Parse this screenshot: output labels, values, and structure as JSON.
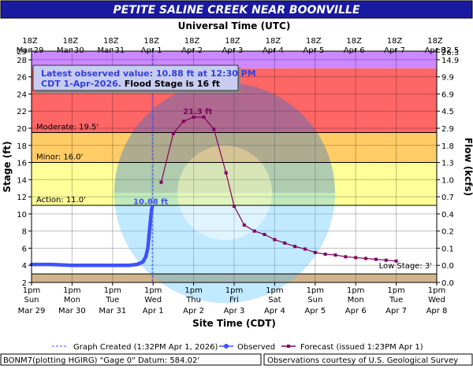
{
  "title": "PETITE SALINE CREEK NEAR BOONVILLE",
  "top_axis_title": "Universal Time (UTC)",
  "bottom_axis_title": "Site Time (CDT)",
  "left_axis_title": "Stage (ft)",
  "right_axis_title": "Flow (kcfs)",
  "info_box": {
    "line1": "Latest observed value: 10.88 ft at 12:30 PM",
    "line2a": "CDT 1-Apr-2026.",
    "line2b": " Flood Stage is 16 ft"
  },
  "footer": {
    "legend_created": "Graph Created (1:32PM Apr 1, 2026)",
    "legend_observed": "Observed",
    "legend_forecast": "Forecast (issued 1:23PM Apr 1)",
    "id_text": "BONM7(plotting HGIRG) \"Gage 0\" Datum: 584.02'",
    "credit": "Observations courtesy of U.S. Geological Survey"
  },
  "chart_data": {
    "type": "line",
    "x_unit": "days since 1pm Mar 29 (CDT)",
    "xlim": [
      0,
      10
    ],
    "ylim": [
      2,
      29
    ],
    "left_ticks": [
      2,
      4,
      6,
      8,
      10,
      12,
      14,
      16,
      18,
      20,
      22,
      24,
      26,
      28,
      29
    ],
    "right_ticks": [
      {
        "stage": 2,
        "label": "0.0"
      },
      {
        "stage": 4,
        "label": "0.0"
      },
      {
        "stage": 6,
        "label": "0.1"
      },
      {
        "stage": 8,
        "label": "0.2"
      },
      {
        "stage": 10,
        "label": "0.4"
      },
      {
        "stage": 12,
        "label": "0.7"
      },
      {
        "stage": 14,
        "label": "1.0"
      },
      {
        "stage": 16,
        "label": "1.3"
      },
      {
        "stage": 18,
        "label": "1.8"
      },
      {
        "stage": 20,
        "label": "2.9"
      },
      {
        "stage": 22,
        "label": "4.5"
      },
      {
        "stage": 24,
        "label": "6.9"
      },
      {
        "stage": 26,
        "label": "9.9"
      },
      {
        "stage": 28,
        "label": "14.9"
      },
      {
        "stage": 28.9,
        "label": "26.3"
      },
      {
        "stage": 29.2,
        "label": "32.5"
      }
    ],
    "bottom_ticks": [
      {
        "x": 0,
        "l1": "1pm",
        "l2": "Sun",
        "l3": "Mar 29"
      },
      {
        "x": 1,
        "l1": "1pm",
        "l2": "Mon",
        "l3": "Mar 30"
      },
      {
        "x": 2,
        "l1": "1pm",
        "l2": "Tue",
        "l3": "Mar 31"
      },
      {
        "x": 3,
        "l1": "1pm",
        "l2": "Wed",
        "l3": "Apr 1"
      },
      {
        "x": 4,
        "l1": "1pm",
        "l2": "Thu",
        "l3": "Apr 2"
      },
      {
        "x": 5,
        "l1": "1pm",
        "l2": "Fri",
        "l3": "Apr 3"
      },
      {
        "x": 6,
        "l1": "1pm",
        "l2": "Sat",
        "l3": "Apr 4"
      },
      {
        "x": 7,
        "l1": "1pm",
        "l2": "Sun",
        "l3": "Apr 5"
      },
      {
        "x": 8,
        "l1": "1pm",
        "l2": "Mon",
        "l3": "Apr 6"
      },
      {
        "x": 9,
        "l1": "1pm",
        "l2": "Tue",
        "l3": "Apr 7"
      },
      {
        "x": 10,
        "l1": "1pm",
        "l2": "Wed",
        "l3": "Apr 8"
      }
    ],
    "top_ticks": [
      {
        "x": 0,
        "l1": "18Z",
        "l2": "Mar 29"
      },
      {
        "x": 1,
        "l1": "18Z",
        "l2": "Mar 30"
      },
      {
        "x": 2,
        "l1": "18Z",
        "l2": "Mar 31"
      },
      {
        "x": 3,
        "l1": "18Z",
        "l2": "Apr 1"
      },
      {
        "x": 4,
        "l1": "18Z",
        "l2": "Apr 2"
      },
      {
        "x": 5,
        "l1": "18Z",
        "l2": "Apr 3"
      },
      {
        "x": 6,
        "l1": "18Z",
        "l2": "Apr 4"
      },
      {
        "x": 7,
        "l1": "18Z",
        "l2": "Apr 5"
      },
      {
        "x": 8,
        "l1": "18Z",
        "l2": "Apr 6"
      },
      {
        "x": 9,
        "l1": "18Z",
        "l2": "Apr 7"
      },
      {
        "x": 10,
        "l1": "18Z",
        "l2": "Apr 8"
      }
    ],
    "bands": [
      {
        "from": 2,
        "to": 3,
        "color": "#d2b48c"
      },
      {
        "from": 3,
        "to": 11,
        "color": "#ffffff"
      },
      {
        "from": 11,
        "to": 16,
        "color": "#ffff99"
      },
      {
        "from": 16,
        "to": 19.5,
        "color": "#ffcc66"
      },
      {
        "from": 19.5,
        "to": 27,
        "color": "#ff6666"
      },
      {
        "from": 27,
        "to": 29,
        "color": "#cc88ff"
      }
    ],
    "thresholds": [
      {
        "name": "Moderate",
        "label": "Moderate: 19.5'",
        "value": 19.5
      },
      {
        "name": "Minor",
        "label": "Minor: 16.0'",
        "value": 16.0
      },
      {
        "name": "Action",
        "label": "Action: 11.0'",
        "value": 11.0
      },
      {
        "name": "Low",
        "label": "Low Stage: 3'",
        "value": 3.0
      }
    ],
    "graph_created_x": 2.98,
    "observed": [
      [
        0,
        4.1
      ],
      [
        0.5,
        4.1
      ],
      [
        1.0,
        4.0
      ],
      [
        1.5,
        4.0
      ],
      [
        2.0,
        4.0
      ],
      [
        2.4,
        4.0
      ],
      [
        2.6,
        4.1
      ],
      [
        2.75,
        4.4
      ],
      [
        2.82,
        5.0
      ],
      [
        2.87,
        6.0
      ],
      [
        2.9,
        7.5
      ],
      [
        2.93,
        9.0
      ],
      [
        2.96,
        10.4
      ],
      [
        2.98,
        10.88
      ]
    ],
    "forecast": [
      [
        3.2,
        13.7
      ],
      [
        3.5,
        19.4
      ],
      [
        3.75,
        20.8
      ],
      [
        4.0,
        21.3
      ],
      [
        4.25,
        21.3
      ],
      [
        4.5,
        19.9
      ],
      [
        4.8,
        14.8
      ],
      [
        5.0,
        10.9
      ],
      [
        5.25,
        8.7
      ],
      [
        5.5,
        8.0
      ],
      [
        5.75,
        7.6
      ],
      [
        6.0,
        7.0
      ],
      [
        6.25,
        6.6
      ],
      [
        6.5,
        6.2
      ],
      [
        6.75,
        5.9
      ],
      [
        7.0,
        5.5
      ],
      [
        7.25,
        5.3
      ],
      [
        7.5,
        5.2
      ],
      [
        7.75,
        5.0
      ],
      [
        8.0,
        4.9
      ],
      [
        8.25,
        4.8
      ],
      [
        8.5,
        4.7
      ],
      [
        8.75,
        4.6
      ],
      [
        9.0,
        4.5
      ]
    ],
    "observed_label": "10.88 ft",
    "crest_label": "21.3 ft",
    "colors": {
      "observed": "#3f51ff",
      "forecast": "#800060",
      "title_bg": "#1a1aa0"
    }
  }
}
